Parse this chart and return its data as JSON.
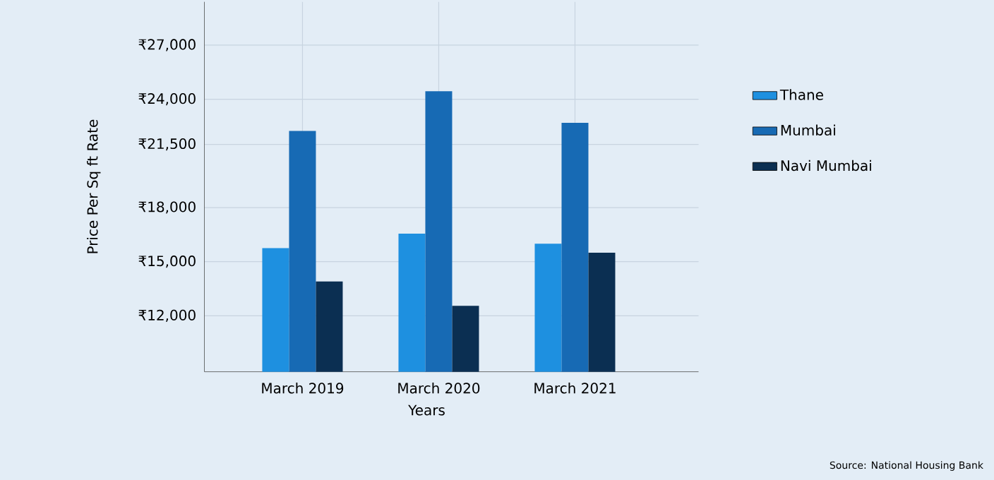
{
  "chart_data": {
    "type": "bar",
    "ylabel": "Price Per Sq ft Rate",
    "xlabel": "Years",
    "annotations": [
      "Source: National Housing Bank"
    ],
    "categories": [
      "March 2019",
      "March 2020",
      "March 2021"
    ],
    "series": [
      {
        "name": "Thane",
        "color": "#1e90e0",
        "values": [
          15750,
          16550,
          16000
        ]
      },
      {
        "name": "Mumbai",
        "color": "#176ab4",
        "values": [
          22250,
          24450,
          22700
        ]
      },
      {
        "name": "Navi Mumbai",
        "color": "#0b2f52",
        "values": [
          13900,
          12550,
          15500
        ]
      }
    ],
    "ylim": [
      8900,
      29400
    ],
    "yticks": [
      {
        "value": 12000,
        "label": "₹12,000"
      },
      {
        "value": 15000,
        "label": "₹15,000"
      },
      {
        "value": 18000,
        "label": "₹18,000"
      },
      {
        "value": 21500,
        "label": "₹21,500"
      },
      {
        "value": 24000,
        "label": "₹24,000"
      },
      {
        "value": 27000,
        "label": "₹27,000"
      }
    ],
    "grid": true,
    "legend": "right"
  }
}
